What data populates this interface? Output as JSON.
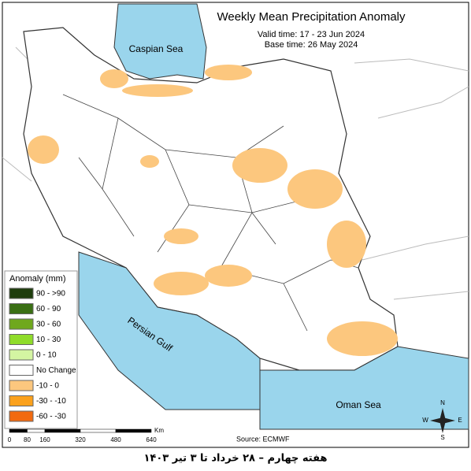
{
  "header": {
    "title": "Weekly Mean Precipitation Anomaly",
    "valid_time": "Valid time: 17 - 23 Jun 2024",
    "base_time": "Base time: 26 May 2024"
  },
  "labels": {
    "caspian": "Caspian Sea",
    "gulf": "Persian Gulf",
    "oman": "Oman Sea"
  },
  "legend": {
    "title": "Anomaly (mm)",
    "items": [
      {
        "label": "90 - >90",
        "color": "#1e3d0c"
      },
      {
        "label": "60 - 90",
        "color": "#3a6f14"
      },
      {
        "label": "30 - 60",
        "color": "#6fa81d"
      },
      {
        "label": "10 - 30",
        "color": "#8fdc2a"
      },
      {
        "label": "0 - 10",
        "color": "#d4f5a2"
      },
      {
        "label": "No Change",
        "color": "#ffffff"
      },
      {
        "label": "-10 - 0",
        "color": "#fcc77e"
      },
      {
        "label": "-30 - -10",
        "color": "#fba11c"
      },
      {
        "label": "-60 - -30",
        "color": "#f26a10"
      }
    ]
  },
  "scale": {
    "ticks": [
      0,
      80,
      160,
      320,
      480,
      640
    ],
    "unit": "Km"
  },
  "compass": {
    "n": "N",
    "s": "S",
    "w": "W",
    "e": "E"
  },
  "source": "Source: ECMWF",
  "footer": "هفته چهارم – ۲۸ خرداد تا ۳ تیر ۱۴۰۳"
}
